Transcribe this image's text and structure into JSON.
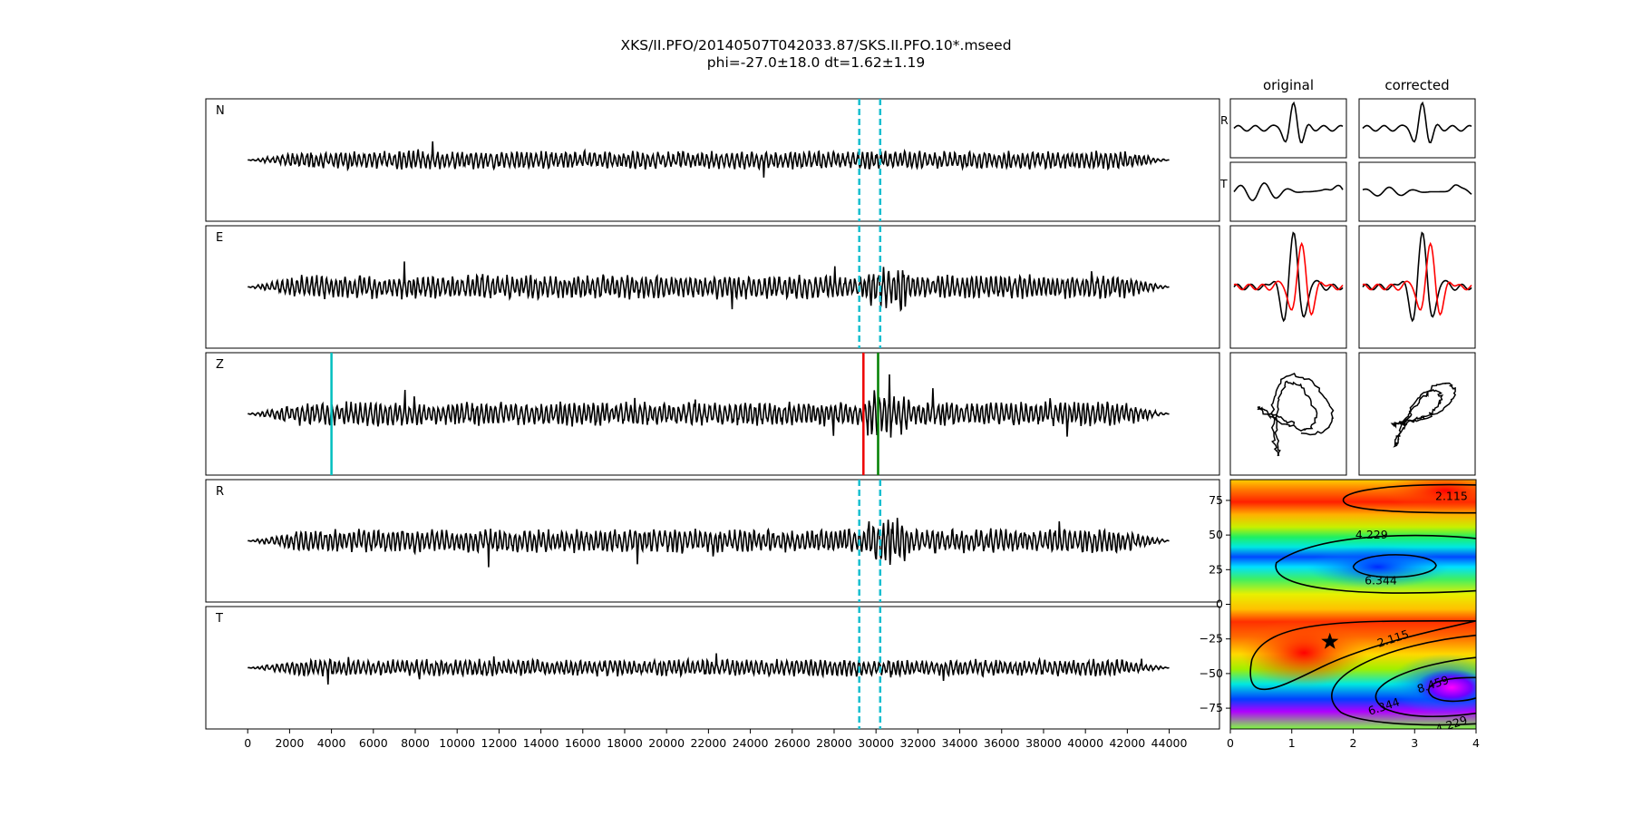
{
  "title_line1": "XKS/II.PFO/20140507T042033.87/SKS.II.PFO.10*.mseed",
  "title_line2": "phi=-27.0±18.0 dt=1.62±1.19",
  "col_original": "original",
  "col_corrected": "corrected",
  "colors": {
    "trace": "#000000",
    "window_marker": "#17becf",
    "pick_cyan": "#00bfbf",
    "pick_red": "#ee0000",
    "pick_green": "#008000",
    "particle_red": "#ff0000"
  },
  "chart_data": [
    {
      "type": "line",
      "name": "traces",
      "panel_labels": [
        "N",
        "E",
        "Z",
        "R",
        "T"
      ],
      "x_range": [
        0,
        44000
      ],
      "xlim": [
        -2000,
        46400
      ],
      "x_ticks": [
        0,
        2000,
        4000,
        6000,
        8000,
        10000,
        12000,
        14000,
        16000,
        18000,
        20000,
        22000,
        24000,
        26000,
        28000,
        30000,
        32000,
        34000,
        36000,
        38000,
        40000,
        42000,
        44000
      ],
      "window_dashed": [
        29200,
        30200
      ],
      "picks": [
        {
          "x": 4000,
          "color": "cyan"
        },
        {
          "x": 29400,
          "color": "red"
        },
        {
          "x": 30100,
          "color": "green"
        }
      ],
      "series": [
        {
          "label": "N",
          "peak_amplitude": 0.75
        },
        {
          "label": "E",
          "peak_amplitude": 1.0
        },
        {
          "label": "Z",
          "peak_amplitude": 1.0
        },
        {
          "label": "R",
          "peak_amplitude": 1.0
        },
        {
          "label": "T",
          "peak_amplitude": 0.7
        }
      ]
    },
    {
      "type": "line",
      "name": "window-comparison",
      "columns": [
        "original",
        "corrected"
      ],
      "rows": [
        "R",
        "T",
        "overlay",
        "particle-motion"
      ]
    },
    {
      "type": "heatmap",
      "name": "error-surface",
      "xlim": [
        0,
        4
      ],
      "ylim": [
        -90,
        90
      ],
      "x_ticks": [
        0,
        1,
        2,
        3,
        4
      ],
      "y_ticks": [
        75,
        50,
        25,
        0,
        -25,
        -50,
        -75
      ],
      "contour_labels": [
        "2.115",
        "4.229",
        "6.344",
        "2.115",
        "8.459",
        "6.344",
        "4.229"
      ],
      "best": {
        "dt": 1.62,
        "phi": -27.0
      }
    }
  ]
}
